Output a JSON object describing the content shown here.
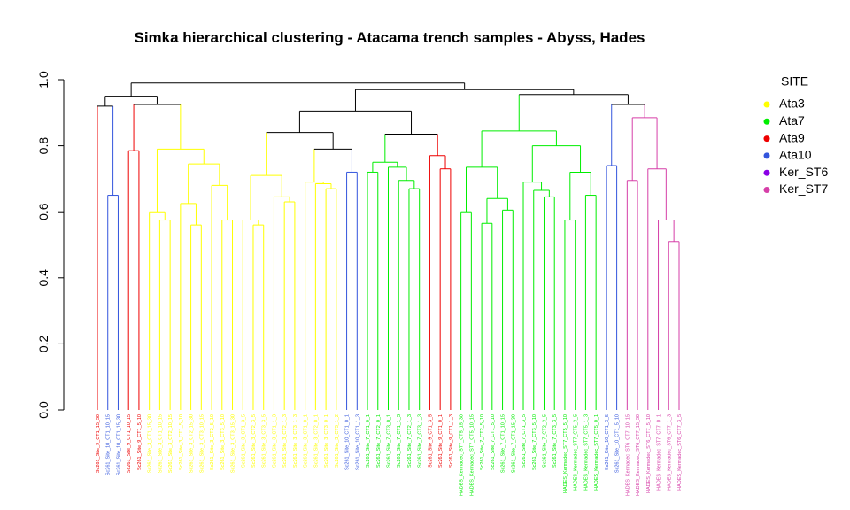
{
  "chart_data": {
    "type": "dendrogram",
    "title": "Simka hierarchical clustering - Atacama trench samples - Abyss, Hades",
    "legend_title": "SITE",
    "legend_position": "right",
    "sites": [
      {
        "name": "Ata3",
        "color": "#ffff00"
      },
      {
        "name": "Ata7",
        "color": "#00ee00"
      },
      {
        "name": "Ata9",
        "color": "#ee0000"
      },
      {
        "name": "Ata10",
        "color": "#3355dd"
      },
      {
        "name": "Ker_ST6",
        "color": "#8a00e6"
      },
      {
        "name": "Ker_ST7",
        "color": "#d63fa8"
      }
    ],
    "leaves": [
      {
        "label": "Sc261_Site_9_CT1_15_30",
        "site": "Ata9"
      },
      {
        "label": "Sc261_Site_10_CT1_10_15",
        "site": "Ata10"
      },
      {
        "label": "Sc261_Site_10_CT1_15_30",
        "site": "Ata10"
      },
      {
        "label": "Sc261_Site_9_CT1_10_15",
        "site": "Ata9"
      },
      {
        "label": "Sc261_Site_9_CT1_5_10",
        "site": "Ata9"
      },
      {
        "label": "Sc261_Site_3_CT1_15_30",
        "site": "Ata3"
      },
      {
        "label": "Sc261_Site_3_CT1_10_15",
        "site": "Ata3"
      },
      {
        "label": "Sc261_Site_3_CT2_10_15",
        "site": "Ata3"
      },
      {
        "label": "Sc261_Site_3_CT1_5_10",
        "site": "Ata3"
      },
      {
        "label": "Sc261_Site_3_CT2_15_30",
        "site": "Ata3"
      },
      {
        "label": "Sc261_Site_3_CT3_10_15",
        "site": "Ata3"
      },
      {
        "label": "Sc261_Site_3_CT2_5_10",
        "site": "Ata3"
      },
      {
        "label": "Sc261_Site_3_CT3_5_10",
        "site": "Ata3"
      },
      {
        "label": "Sc261_Site_3_CT3_15_30",
        "site": "Ata3"
      },
      {
        "label": "Sc261_Site_3_CT1_3_5",
        "site": "Ata3"
      },
      {
        "label": "Sc261_Site_3_CT2_3_5",
        "site": "Ata3"
      },
      {
        "label": "Sc261_Site_3_CT3_3_5",
        "site": "Ata3"
      },
      {
        "label": "Sc261_Site_3_CT1_1_3",
        "site": "Ata3"
      },
      {
        "label": "Sc261_Site_3_CT2_1_3",
        "site": "Ata3"
      },
      {
        "label": "Sc261_Site_3_CT3_1_3",
        "site": "Ata3"
      },
      {
        "label": "Sc261_Site_3_CT1_0_1",
        "site": "Ata3"
      },
      {
        "label": "Sc261_Site_3_CT2_0_1",
        "site": "Ata3"
      },
      {
        "label": "Sc261_Site_3_CT3_0_1",
        "site": "Ata3"
      },
      {
        "label": "Sc261_Site_3_CT3_1_2",
        "site": "Ata3"
      },
      {
        "label": "Sc261_Site_10_CT1_0_1",
        "site": "Ata10"
      },
      {
        "label": "Sc261_Site_10_CT1_1_3",
        "site": "Ata10"
      },
      {
        "label": "Sc261_Site_7_CT1_0_1",
        "site": "Ata7"
      },
      {
        "label": "Sc261_Site_7_CT2_0_1",
        "site": "Ata7"
      },
      {
        "label": "Sc261_Site_7_CT3_0_1",
        "site": "Ata7"
      },
      {
        "label": "Sc261_Site_7_CT1_1_3",
        "site": "Ata7"
      },
      {
        "label": "Sc261_Site_7_CT2_1_3",
        "site": "Ata7"
      },
      {
        "label": "Sc261_Site_7_CT3_1_3",
        "site": "Ata7"
      },
      {
        "label": "Sc261_Site_9_CT1_3_5",
        "site": "Ata9"
      },
      {
        "label": "Sc261_Site_9_CT1_0_1",
        "site": "Ata9"
      },
      {
        "label": "Sc261_Site_9_CT1_1_3",
        "site": "Ata9"
      },
      {
        "label": "HADES_Kermadec_ST7_CT5_15_30",
        "site": "Ata7"
      },
      {
        "label": "HADES_Kermadec_ST7_CT5_10_15",
        "site": "Ata7"
      },
      {
        "label": "Sc261_Site_7_CT2_5_10",
        "site": "Ata7"
      },
      {
        "label": "Sc261_Site_7_CT1_5_10",
        "site": "Ata7"
      },
      {
        "label": "Sc261_Site_7_CT1_10_15",
        "site": "Ata7"
      },
      {
        "label": "Sc261_Site_7_CT1_15_30",
        "site": "Ata7"
      },
      {
        "label": "Sc261_Site_7_CT1_3_5",
        "site": "Ata7"
      },
      {
        "label": "Sc261_Site_7_CT3_5_10",
        "site": "Ata7"
      },
      {
        "label": "Sc261_Site_7_CT2_3_5",
        "site": "Ata7"
      },
      {
        "label": "Sc261_Site_7_CT3_3_5",
        "site": "Ata7"
      },
      {
        "label": "HADES_Kermadec_ST7_CT5_5_10",
        "site": "Ata7"
      },
      {
        "label": "HADES_Kermadec_ST7_CT5_3_5",
        "site": "Ata7"
      },
      {
        "label": "HADES_Kermadec_ST7_CT5_1_3",
        "site": "Ata7"
      },
      {
        "label": "HADES_Kermadec_ST7_CT5_0_1",
        "site": "Ata7"
      },
      {
        "label": "Sc261_Site_10_CT1_3_5",
        "site": "Ata10"
      },
      {
        "label": "Sc261_Site_10_CT1_5_10",
        "site": "Ata10"
      },
      {
        "label": "HADES_Kermadec_ST6_CT7_10_15",
        "site": "Ker_ST7"
      },
      {
        "label": "HADES_Kermadec_ST6_CT7_15_30",
        "site": "Ker_ST7"
      },
      {
        "label": "HADES_Kermadec_ST6_CT7_5_10",
        "site": "Ker_ST7"
      },
      {
        "label": "HADES_Kermadec_ST7_CT7_0_1",
        "site": "Ker_ST7"
      },
      {
        "label": "HADES_Kermadec_ST6_CT7_1_3",
        "site": "Ker_ST7"
      },
      {
        "label": "HADES_Kermadec_ST6_CT7_3_5",
        "site": "Ker_ST7"
      }
    ],
    "merges": [
      {
        "left": -2,
        "right": -3,
        "height": 0.65
      },
      {
        "left": -1,
        "right": 1,
        "height": 0.92
      },
      {
        "left": -4,
        "right": -5,
        "height": 0.785
      },
      {
        "left": -7,
        "right": -8,
        "height": 0.575
      },
      {
        "left": -6,
        "right": 4,
        "height": 0.6
      },
      {
        "left": -10,
        "right": -11,
        "height": 0.56
      },
      {
        "left": -9,
        "right": 6,
        "height": 0.625
      },
      {
        "left": -13,
        "right": -14,
        "height": 0.575
      },
      {
        "left": -12,
        "right": 8,
        "height": 0.68
      },
      {
        "left": 7,
        "right": 9,
        "height": 0.745
      },
      {
        "left": 5,
        "right": 10,
        "height": 0.79
      },
      {
        "left": 3,
        "right": 11,
        "height": 0.925
      },
      {
        "left": 2,
        "right": 12,
        "height": 0.95
      },
      {
        "left": -16,
        "right": -17,
        "height": 0.56
      },
      {
        "left": -15,
        "right": 14,
        "height": 0.575
      },
      {
        "left": -19,
        "right": -20,
        "height": 0.63
      },
      {
        "left": -18,
        "right": 16,
        "height": 0.645
      },
      {
        "left": 15,
        "right": 17,
        "height": 0.71
      },
      {
        "left": -23,
        "right": -24,
        "height": 0.67
      },
      {
        "left": -22,
        "right": 19,
        "height": 0.685
      },
      {
        "left": -21,
        "right": 20,
        "height": 0.69
      },
      {
        "left": -25,
        "right": -26,
        "height": 0.72
      },
      {
        "left": 21,
        "right": 22,
        "height": 0.79
      },
      {
        "left": 18,
        "right": 23,
        "height": 0.84
      },
      {
        "left": -27,
        "right": -28,
        "height": 0.72
      },
      {
        "left": -31,
        "right": -32,
        "height": 0.67
      },
      {
        "left": -30,
        "right": 26,
        "height": 0.695
      },
      {
        "left": -29,
        "right": 27,
        "height": 0.735
      },
      {
        "left": 25,
        "right": 28,
        "height": 0.75
      },
      {
        "left": -34,
        "right": -35,
        "height": 0.73
      },
      {
        "left": -33,
        "right": 30,
        "height": 0.77
      },
      {
        "left": 29,
        "right": 31,
        "height": 0.835
      },
      {
        "left": 24,
        "right": 32,
        "height": 0.905
      },
      {
        "left": -36,
        "right": -37,
        "height": 0.6
      },
      {
        "left": -38,
        "right": -39,
        "height": 0.565
      },
      {
        "left": -40,
        "right": -41,
        "height": 0.605
      },
      {
        "left": 35,
        "right": 36,
        "height": 0.64
      },
      {
        "left": 34,
        "right": 37,
        "height": 0.735
      },
      {
        "left": -44,
        "right": -45,
        "height": 0.645
      },
      {
        "left": -43,
        "right": 39,
        "height": 0.665
      },
      {
        "left": -42,
        "right": 40,
        "height": 0.69
      },
      {
        "left": -46,
        "right": -47,
        "height": 0.575
      },
      {
        "left": -48,
        "right": -49,
        "height": 0.65
      },
      {
        "left": 42,
        "right": 43,
        "height": 0.72
      },
      {
        "left": 41,
        "right": 44,
        "height": 0.8
      },
      {
        "left": 38,
        "right": 45,
        "height": 0.845
      },
      {
        "left": -50,
        "right": -51,
        "height": 0.74
      },
      {
        "left": -56,
        "right": -57,
        "height": 0.51
      },
      {
        "left": -55,
        "right": 48,
        "height": 0.575
      },
      {
        "left": -54,
        "right": 49,
        "height": 0.73
      },
      {
        "left": -52,
        "right": -53,
        "height": 0.695
      },
      {
        "left": 51,
        "right": 50,
        "height": 0.885
      },
      {
        "left": 47,
        "right": 52,
        "height": 0.925
      },
      {
        "left": 46,
        "right": 53,
        "height": 0.955
      },
      {
        "left": 33,
        "right": 54,
        "height": 0.97
      },
      {
        "left": 13,
        "right": 55,
        "height": 0.99
      }
    ],
    "ylim": [
      0,
      1
    ],
    "yticks": [
      {
        "value": 0,
        "label": "0.0"
      },
      0.2,
      0.4,
      0.6,
      0.8,
      {
        "value": 1,
        "label": "1.0"
      }
    ]
  }
}
